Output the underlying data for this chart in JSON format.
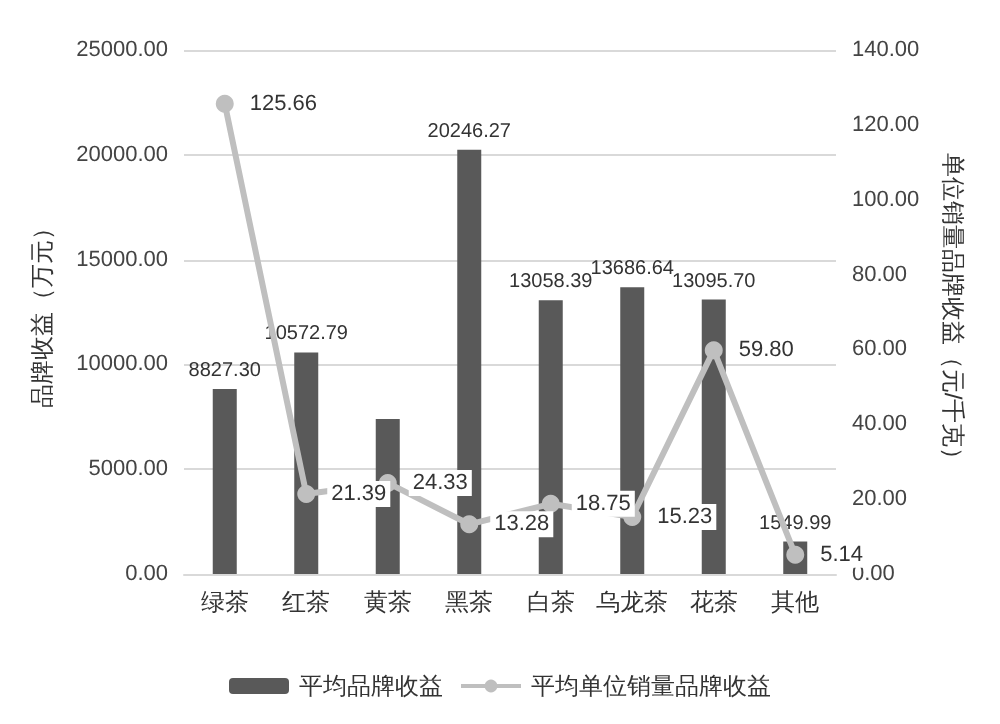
{
  "chart_data": {
    "type": "bar",
    "ylabel": "品牌收益（万元）",
    "y2label": "单位销量品牌收益（元/千克）",
    "categories": [
      "绿茶",
      "红茶",
      "黄茶",
      "黑茶",
      "白茶",
      "乌龙茶",
      "花茶",
      "其他"
    ],
    "series": [
      {
        "name": "平均品牌收益",
        "color": "#595959",
        "values": [
          8827.3,
          10572.79,
          7400,
          20246.27,
          13058.39,
          13686.64,
          13095.7,
          1549.99
        ],
        "value_labels": [
          "8827.30",
          "10572.79",
          null,
          "20246.27",
          "13058.39",
          "13686.64",
          "13095.70",
          "1549.99"
        ]
      },
      {
        "name": "平均单位销量品牌收益",
        "type": "line",
        "axis": "y2",
        "color": "#bfbfbf",
        "values": [
          125.66,
          21.39,
          24.33,
          13.28,
          18.75,
          15.23,
          59.8,
          5.14
        ],
        "value_labels": [
          "125.66",
          "21.39",
          "24.33",
          "13.28",
          "18.75",
          "15.23",
          "59.80",
          "5.14"
        ]
      }
    ],
    "ylim": [
      0,
      25000
    ],
    "yticks": [
      {
        "value": 0,
        "label": "0.00"
      },
      {
        "value": 5000,
        "label": "5000.00"
      },
      {
        "value": 10000,
        "label": "10000.00"
      },
      {
        "value": 15000,
        "label": "15000.00"
      },
      {
        "value": 20000,
        "label": "20000.00"
      },
      {
        "value": 25000,
        "label": "25000.00"
      }
    ],
    "y2lim": [
      0,
      140
    ],
    "y2ticks": [
      {
        "value": 0,
        "label": "0.00"
      },
      {
        "value": 20,
        "label": "20.00"
      },
      {
        "value": 40,
        "label": "40.00"
      },
      {
        "value": 60,
        "label": "60.00"
      },
      {
        "value": 80,
        "label": "80.00"
      },
      {
        "value": 100,
        "label": "100.00"
      },
      {
        "value": 120,
        "label": "120.00"
      },
      {
        "value": 140,
        "label": "140.00"
      }
    ],
    "grid": "y",
    "legend": "bottom",
    "marker": "circle"
  }
}
